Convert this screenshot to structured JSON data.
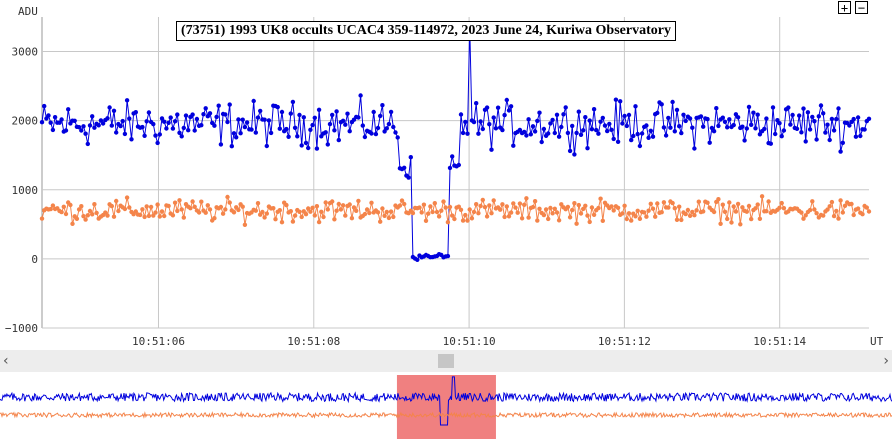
{
  "chart_data": {
    "type": "line",
    "title": "(73751) 1993 UK8 occults UCAC4 359-114972, 2023 June 24, Kuriwa Observatory",
    "ylabel": "ADU",
    "xlabel": "UT",
    "ylim": [
      -1000,
      3500
    ],
    "yticks": [
      "3000",
      "2000",
      "1000",
      "0",
      "−1000"
    ],
    "ytick_values": [
      3000,
      2000,
      1000,
      0,
      -1000
    ],
    "xticks": [
      "10:51:06",
      "10:51:08",
      "10:51:10",
      "10:51:12",
      "10:51:14"
    ],
    "xtick_values": [
      6,
      8,
      10,
      12,
      14
    ],
    "xlim": [
      4.5,
      15.15
    ],
    "grid": true,
    "series": [
      {
        "color": "#0000dd",
        "mean": 1950,
        "noise": 330,
        "dip_start": 9.25,
        "dip_end": 9.75,
        "dip_level": 20,
        "spike_x": 10.0,
        "spike_value": 3370
      },
      {
        "color": "#f4844a",
        "mean": 700,
        "noise": 170
      }
    ]
  },
  "overview": {
    "highlight_color": "#f08080",
    "highlight_from": 0.445,
    "highlight_to": 0.556
  },
  "controls": {
    "zoom_in_label": "+",
    "zoom_out_label": "−",
    "scroll_left_icon": "‹",
    "scroll_right_icon": "›"
  }
}
